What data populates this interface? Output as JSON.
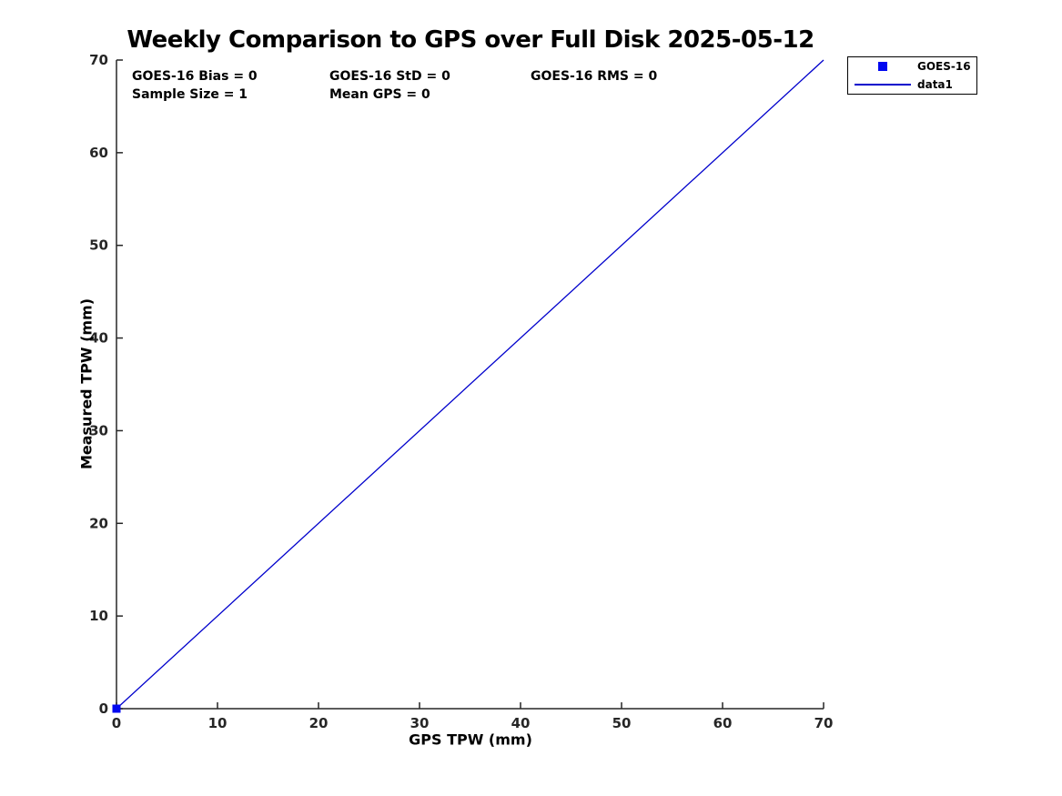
{
  "chart_data": {
    "type": "line",
    "title": "Weekly Comparison to GPS over Full Disk 2025-05-12",
    "xlabel": "GPS TPW (mm)",
    "ylabel": "Measured TPW (mm)",
    "xlim": [
      0,
      70
    ],
    "ylim": [
      0,
      70
    ],
    "xticks": [
      0,
      10,
      20,
      30,
      40,
      50,
      60,
      70
    ],
    "yticks": [
      0,
      10,
      20,
      30,
      40,
      50,
      60,
      70
    ],
    "grid": false,
    "box": false,
    "tick_direction": "in",
    "legend_position": "outside-top-right",
    "axis_color": "#262626",
    "text_color": "#000000",
    "series": [
      {
        "name": "GOES-16",
        "type": "scatter",
        "marker": "square",
        "color": "#0008F0",
        "points": [
          [
            0,
            0
          ]
        ]
      },
      {
        "name": "data1",
        "type": "line",
        "color": "#0000CC",
        "points": [
          [
            0,
            0
          ],
          [
            70,
            70
          ]
        ]
      }
    ],
    "annotations": [
      "GOES-16 Bias = 0",
      "GOES-16 StD = 0",
      "GOES-16 RMS = 0",
      "Sample Size = 1",
      "Mean GPS = 0"
    ]
  }
}
